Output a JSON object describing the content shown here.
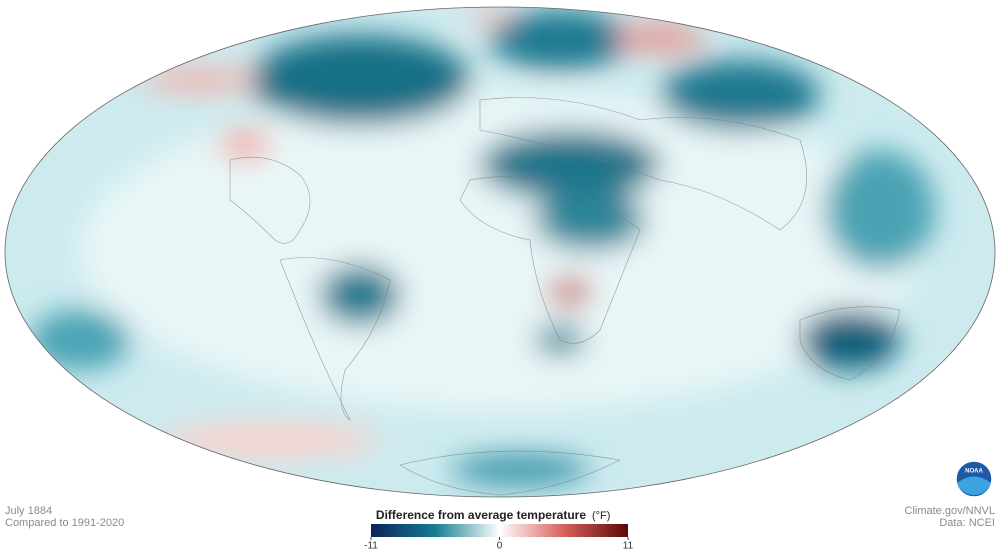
{
  "caption": {
    "date": "July 1884",
    "baseline": "Compared to 1991-2020"
  },
  "legend": {
    "title": "Difference from average temperature",
    "unit": "(°F)",
    "range": [
      -11,
      11
    ],
    "ticks": [
      -11,
      0,
      11
    ]
  },
  "credits": {
    "source": "Climate.gov/NNVL",
    "data": "Data: NCEI"
  },
  "logo": "NOAA"
}
